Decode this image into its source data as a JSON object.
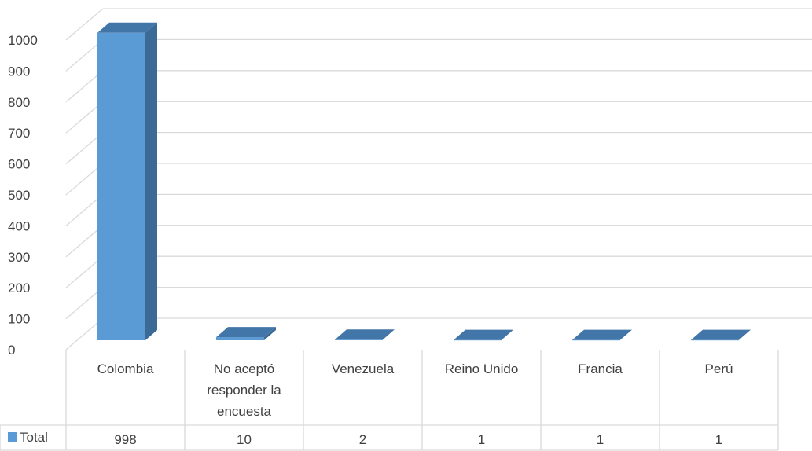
{
  "chart_data": {
    "type": "bar",
    "style": "3d-column-with-data-table",
    "categories": [
      "Colombia",
      "No aceptó responder la encuesta",
      "Venezuela",
      "Reino Unido",
      "Francia",
      "Perú"
    ],
    "category_lines": [
      [
        "Colombia"
      ],
      [
        "No aceptó",
        "responder la",
        "encuesta"
      ],
      [
        "Venezuela"
      ],
      [
        "Reino Unido"
      ],
      [
        "Francia"
      ],
      [
        "Perú"
      ]
    ],
    "series": [
      {
        "name": "Total",
        "values": [
          998,
          10,
          2,
          1,
          1,
          1
        ],
        "color": "#5B9BD5"
      }
    ],
    "value_labels": [
      "998",
      "10",
      "2",
      "1",
      "1",
      "1"
    ],
    "y_ticks": [
      "0",
      "100",
      "200",
      "300",
      "400",
      "500",
      "600",
      "700",
      "800",
      "900",
      "1000"
    ],
    "ylim": [
      0,
      1000
    ],
    "grid": true,
    "legend": "data-table-left",
    "colors": {
      "bar_front": "#5B9BD5",
      "bar_side": "#3A6A95",
      "bar_top": "#4376A8",
      "grid": "#D9D9D9",
      "text": "#404040"
    }
  }
}
